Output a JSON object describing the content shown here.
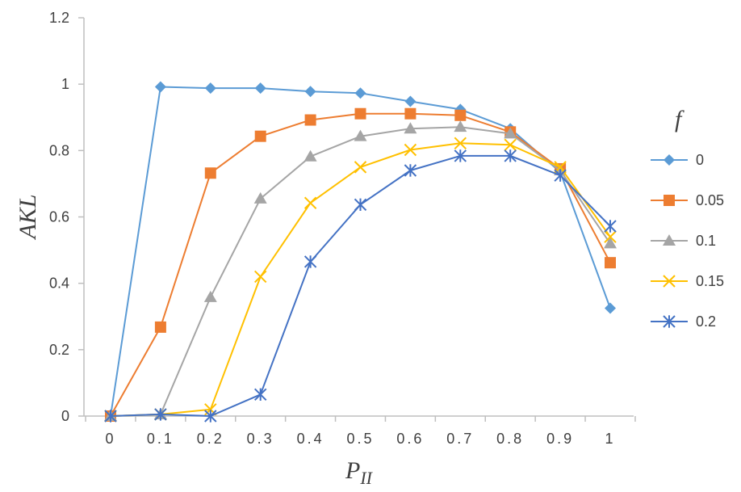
{
  "chart_data": {
    "type": "line",
    "x": [
      0,
      0.1,
      0.2,
      0.3,
      0.4,
      0.5,
      0.6,
      0.7,
      0.8,
      0.9,
      1
    ],
    "x_tick_labels": [
      "0",
      "0.1",
      "0.2",
      "0.3",
      "0.4",
      "0.5",
      "0.6",
      "0.7",
      "0.8",
      "0.9",
      "1"
    ],
    "y_tick_labels": [
      "0",
      "0.2",
      "0.4",
      "0.6",
      "0.8",
      "1",
      "1.2"
    ],
    "ylim": [
      0,
      1.2
    ],
    "ylabel": "AKL",
    "xlabel_main": "P",
    "xlabel_sub": "II",
    "legend_title": "f",
    "legend_position": "right",
    "grid": false,
    "series": [
      {
        "name": "0",
        "marker": "diamond",
        "color": "#5B9BD5",
        "values": [
          0,
          0.992,
          0.988,
          0.988,
          0.978,
          0.973,
          0.948,
          0.924,
          0.866,
          0.735,
          0.325
        ]
      },
      {
        "name": "0.05",
        "marker": "square",
        "color": "#ED7D31",
        "values": [
          0,
          0.268,
          0.732,
          0.843,
          0.892,
          0.911,
          0.911,
          0.906,
          0.856,
          0.745,
          0.462
        ]
      },
      {
        "name": "0.1",
        "marker": "triangle",
        "color": "#A5A5A5",
        "values": [
          0,
          0.005,
          0.358,
          0.655,
          0.782,
          0.843,
          0.866,
          0.871,
          0.851,
          0.74,
          0.52
        ]
      },
      {
        "name": "0.15",
        "marker": "x",
        "color": "#FFC000",
        "values": [
          0,
          0.005,
          0.02,
          0.42,
          0.642,
          0.75,
          0.802,
          0.822,
          0.817,
          0.75,
          0.54
        ]
      },
      {
        "name": "0.2",
        "marker": "star",
        "color": "#4472C4",
        "values": [
          0,
          0.005,
          0,
          0.065,
          0.465,
          0.637,
          0.74,
          0.784,
          0.784,
          0.725,
          0.572
        ]
      }
    ]
  }
}
